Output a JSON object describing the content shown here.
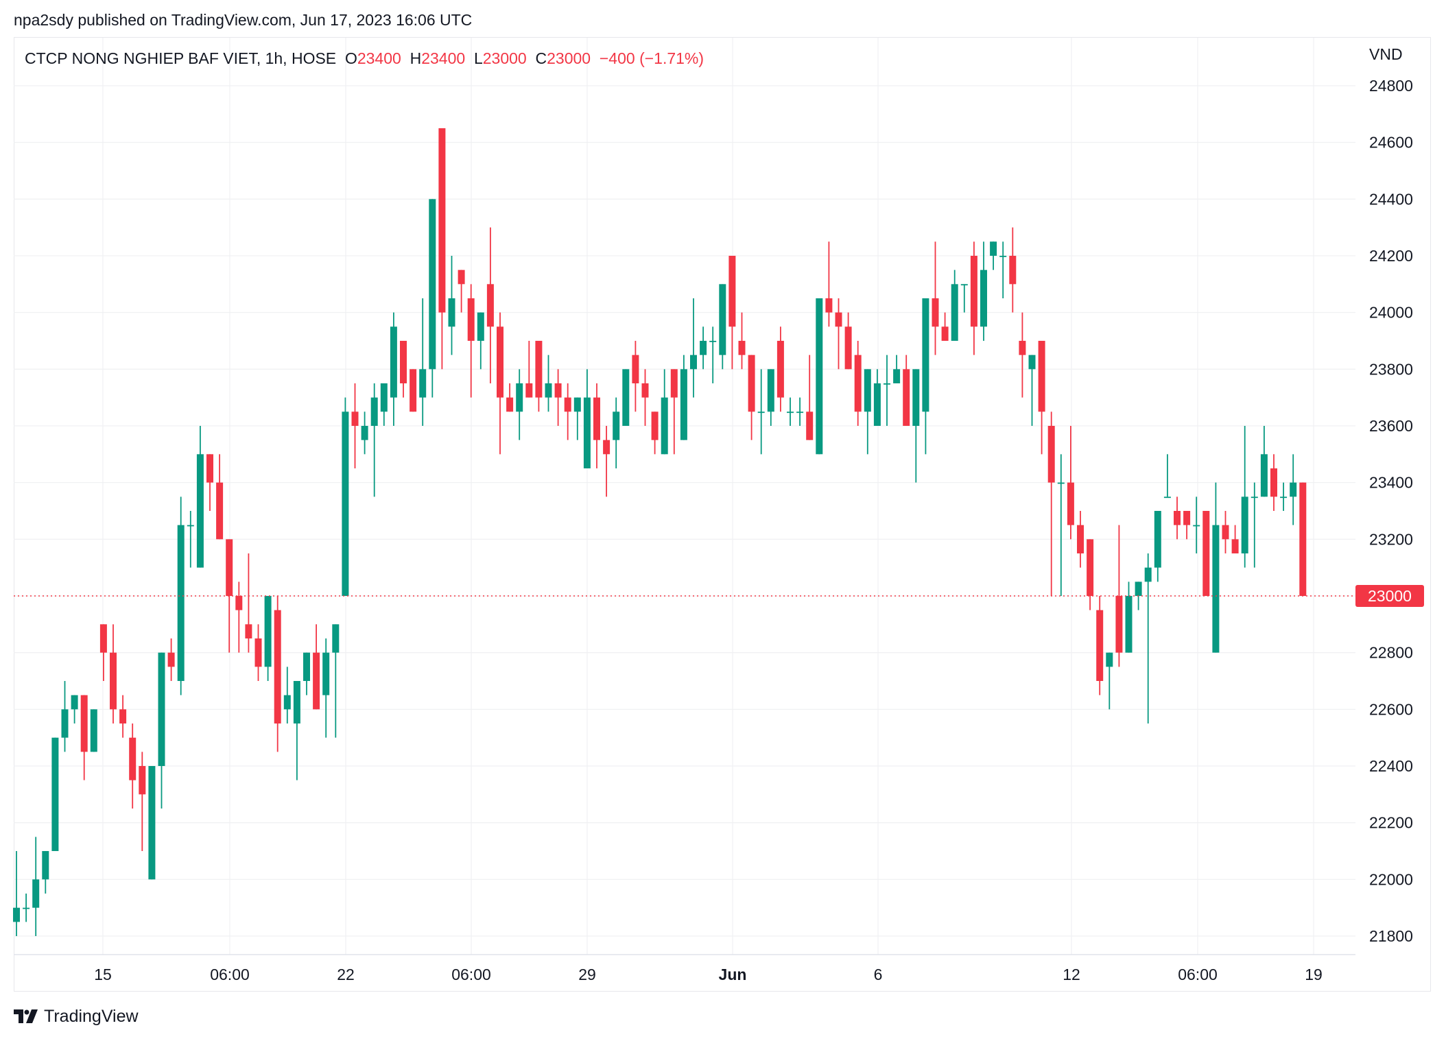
{
  "publish_line": "npa2sdy published on TradingView.com, Jun 17, 2023 16:06 UTC",
  "legend": {
    "symbol": "CTCP NONG NGHIEP BAF VIET, 1h, HOSE",
    "o_label": "O",
    "o_value": "23400",
    "h_label": "H",
    "h_value": "23400",
    "l_label": "L",
    "l_value": "23000",
    "c_label": "C",
    "c_value": "23000",
    "change": "−400 (−1.71%)"
  },
  "currency": "VND",
  "logo_text": "TradingView",
  "colors": {
    "up": "#089981",
    "down": "#F23645",
    "grid": "#f0f1f3"
  },
  "chart_data": {
    "type": "candlestick",
    "interval": "1h",
    "ylim": [
      21750,
      24850
    ],
    "grid": true,
    "y_ticks": [
      "24800",
      "24600",
      "24400",
      "24200",
      "24000",
      "23800",
      "23600",
      "23400",
      "23200",
      "23000",
      "22800",
      "22600",
      "22400",
      "22200",
      "22000",
      "21800"
    ],
    "x_ticks": [
      "15",
      "06:00",
      "22",
      "06:00",
      "29",
      "Jun",
      "6",
      "12",
      "06:00",
      "19"
    ],
    "last_price": "23000",
    "ohlc": [
      [
        21850,
        22100,
        21800,
        21900
      ],
      [
        21900,
        21950,
        21850,
        21900
      ],
      [
        21900,
        22150,
        21800,
        22000
      ],
      [
        22000,
        22100,
        21950,
        22100
      ],
      [
        22100,
        22500,
        22100,
        22500
      ],
      [
        22500,
        22700,
        22450,
        22600
      ],
      [
        22600,
        22650,
        22550,
        22650
      ],
      [
        22650,
        22650,
        22350,
        22450
      ],
      [
        22450,
        22600,
        22450,
        22600
      ],
      [
        22900,
        22900,
        22700,
        22800
      ],
      [
        22800,
        22900,
        22550,
        22600
      ],
      [
        22600,
        22650,
        22500,
        22550
      ],
      [
        22500,
        22550,
        22250,
        22350
      ],
      [
        22400,
        22450,
        22100,
        22300
      ],
      [
        22000,
        22400,
        22000,
        22400
      ],
      [
        22400,
        22800,
        22250,
        22800
      ],
      [
        22800,
        22850,
        22700,
        22750
      ],
      [
        22700,
        23350,
        22650,
        23250
      ],
      [
        23250,
        23300,
        23100,
        23250
      ],
      [
        23100,
        23600,
        23100,
        23500
      ],
      [
        23500,
        23500,
        23300,
        23400
      ],
      [
        23400,
        23500,
        23200,
        23200
      ],
      [
        23200,
        23200,
        22800,
        23000
      ],
      [
        23000,
        23050,
        22800,
        22950
      ],
      [
        22900,
        23150,
        22800,
        22850
      ],
      [
        22850,
        22900,
        22700,
        22750
      ],
      [
        22750,
        23000,
        22700,
        23000
      ],
      [
        22950,
        23000,
        22450,
        22550
      ],
      [
        22600,
        22750,
        22550,
        22650
      ],
      [
        22550,
        22700,
        22350,
        22700
      ],
      [
        22700,
        22800,
        22650,
        22800
      ],
      [
        22800,
        22900,
        22600,
        22600
      ],
      [
        22650,
        22850,
        22500,
        22800
      ],
      [
        22800,
        22900,
        22500,
        22900
      ],
      [
        23000,
        23700,
        23000,
        23650
      ],
      [
        23650,
        23750,
        23450,
        23600
      ],
      [
        23550,
        23650,
        23500,
        23600
      ],
      [
        23600,
        23750,
        23350,
        23700
      ],
      [
        23650,
        23750,
        23600,
        23750
      ],
      [
        23700,
        24000,
        23600,
        23950
      ],
      [
        23900,
        23900,
        23700,
        23750
      ],
      [
        23800,
        23800,
        23650,
        23650
      ],
      [
        23700,
        24050,
        23600,
        23800
      ],
      [
        23800,
        24400,
        23700,
        24400
      ],
      [
        24650,
        24650,
        23800,
        24000
      ],
      [
        23950,
        24200,
        23850,
        24050
      ],
      [
        24150,
        24150,
        24000,
        24100
      ],
      [
        24050,
        24100,
        23700,
        23900
      ],
      [
        23900,
        24000,
        23800,
        24000
      ],
      [
        24100,
        24300,
        23750,
        23950
      ],
      [
        23950,
        24000,
        23500,
        23700
      ],
      [
        23700,
        23750,
        23650,
        23650
      ],
      [
        23650,
        23800,
        23550,
        23750
      ],
      [
        23750,
        23900,
        23700,
        23700
      ],
      [
        23900,
        23900,
        23650,
        23700
      ],
      [
        23700,
        23850,
        23650,
        23750
      ],
      [
        23750,
        23800,
        23600,
        23700
      ],
      [
        23700,
        23750,
        23550,
        23650
      ],
      [
        23650,
        23700,
        23550,
        23700
      ],
      [
        23450,
        23800,
        23450,
        23700
      ],
      [
        23700,
        23750,
        23450,
        23550
      ],
      [
        23550,
        23600,
        23350,
        23500
      ],
      [
        23550,
        23700,
        23450,
        23650
      ],
      [
        23600,
        23800,
        23600,
        23800
      ],
      [
        23850,
        23900,
        23650,
        23750
      ],
      [
        23750,
        23800,
        23600,
        23700
      ],
      [
        23650,
        23650,
        23500,
        23550
      ],
      [
        23500,
        23800,
        23500,
        23700
      ],
      [
        23800,
        23800,
        23500,
        23700
      ],
      [
        23550,
        23850,
        23550,
        23800
      ],
      [
        23800,
        24050,
        23700,
        23850
      ],
      [
        23850,
        23950,
        23800,
        23900
      ],
      [
        23900,
        23950,
        23750,
        23900
      ],
      [
        23850,
        24100,
        23800,
        24100
      ],
      [
        24200,
        24200,
        23800,
        23950
      ],
      [
        23900,
        24000,
        23800,
        23850
      ],
      [
        23850,
        23850,
        23550,
        23650
      ],
      [
        23650,
        23800,
        23500,
        23650
      ],
      [
        23650,
        23800,
        23600,
        23800
      ],
      [
        23900,
        23950,
        23650,
        23700
      ],
      [
        23650,
        23700,
        23600,
        23650
      ],
      [
        23650,
        23700,
        23600,
        23650
      ],
      [
        23650,
        23850,
        23550,
        23550
      ],
      [
        23500,
        24050,
        23500,
        24050
      ],
      [
        24050,
        24250,
        23950,
        24000
      ],
      [
        24000,
        24050,
        23800,
        23950
      ],
      [
        23950,
        24000,
        23800,
        23800
      ],
      [
        23850,
        23900,
        23600,
        23650
      ],
      [
        23650,
        23800,
        23500,
        23800
      ],
      [
        23600,
        23800,
        23600,
        23750
      ],
      [
        23750,
        23850,
        23600,
        23750
      ],
      [
        23750,
        23850,
        23750,
        23800
      ],
      [
        23800,
        23850,
        23600,
        23600
      ],
      [
        23600,
        23800,
        23400,
        23800
      ],
      [
        23650,
        24050,
        23500,
        24050
      ],
      [
        24050,
        24250,
        23850,
        23950
      ],
      [
        23950,
        24000,
        23900,
        23900
      ],
      [
        23900,
        24150,
        23900,
        24100
      ],
      [
        24100,
        24100,
        24000,
        24100
      ],
      [
        24200,
        24250,
        23850,
        23950
      ],
      [
        23950,
        24250,
        23900,
        24150
      ],
      [
        24200,
        24250,
        24150,
        24250
      ],
      [
        24200,
        24250,
        24050,
        24200
      ],
      [
        24200,
        24300,
        24000,
        24100
      ],
      [
        23900,
        24000,
        23700,
        23850
      ],
      [
        23800,
        23850,
        23600,
        23850
      ],
      [
        23900,
        23900,
        23500,
        23650
      ],
      [
        23600,
        23650,
        23000,
        23400
      ],
      [
        23400,
        23500,
        23000,
        23400
      ],
      [
        23400,
        23600,
        23200,
        23250
      ],
      [
        23250,
        23300,
        23100,
        23150
      ],
      [
        23200,
        23200,
        22950,
        23000
      ],
      [
        22950,
        23000,
        22650,
        22700
      ],
      [
        22750,
        22800,
        22600,
        22800
      ],
      [
        23000,
        23250,
        22750,
        22800
      ],
      [
        22800,
        23050,
        22800,
        23000
      ],
      [
        23000,
        23050,
        22950,
        23050
      ],
      [
        23050,
        23150,
        22550,
        23100
      ],
      [
        23100,
        23300,
        23050,
        23300
      ],
      [
        23350,
        23500,
        23350,
        23350
      ],
      [
        23300,
        23350,
        23200,
        23250
      ],
      [
        23300,
        23300,
        23200,
        23250
      ],
      [
        23250,
        23350,
        23150,
        23250
      ],
      [
        23300,
        23300,
        23000,
        23000
      ],
      [
        22800,
        23400,
        22800,
        23250
      ],
      [
        23250,
        23300,
        23150,
        23200
      ],
      [
        23200,
        23250,
        23150,
        23150
      ],
      [
        23150,
        23600,
        23100,
        23350
      ],
      [
        23350,
        23400,
        23100,
        23350
      ],
      [
        23350,
        23600,
        23350,
        23500
      ],
      [
        23450,
        23500,
        23300,
        23350
      ],
      [
        23350,
        23400,
        23300,
        23350
      ],
      [
        23350,
        23500,
        23250,
        23400
      ],
      [
        23400,
        23400,
        23000,
        23000
      ]
    ]
  }
}
